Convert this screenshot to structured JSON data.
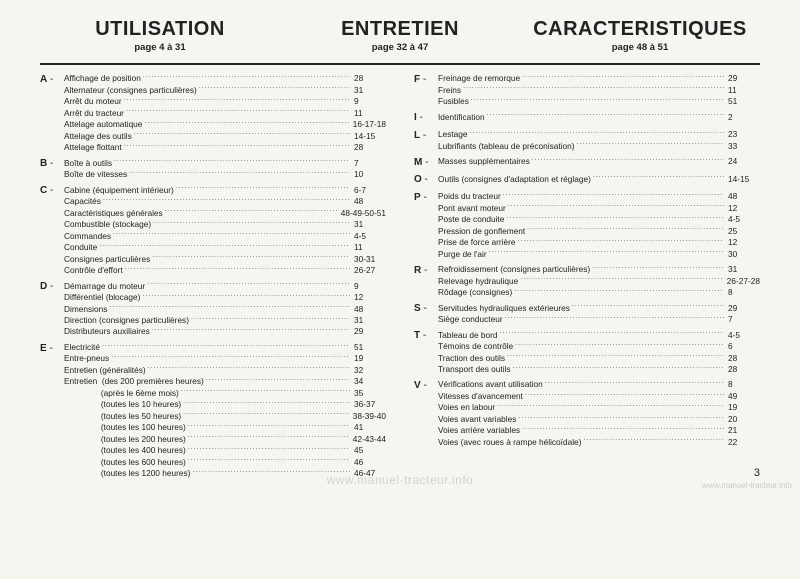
{
  "headers": [
    {
      "title": "UTILISATION",
      "sub": "page 4 à 31"
    },
    {
      "title": "ENTRETIEN",
      "sub": "page 32 à 47"
    },
    {
      "title": "CARACTERISTIQUES",
      "sub": "page 48 à 51"
    }
  ],
  "page_number": "3",
  "watermark": "www.manuel-tracteur.info",
  "colors": {
    "bg": "#f7f5f0",
    "text": "#222",
    "rule": "#222"
  },
  "typography": {
    "title_fontsize": 20,
    "title_weight": 900,
    "entry_fontsize": 8.3
  },
  "columns": [
    [
      {
        "letter": "A",
        "entries": [
          [
            "Affichage de position",
            "28"
          ],
          [
            "Alternateur (consignes particulières)",
            "31"
          ],
          [
            "Arrêt du moteur",
            "9"
          ],
          [
            "Arrêt du tracteur",
            "11"
          ],
          [
            "Attelage automatique",
            "16-17-18"
          ],
          [
            "Attelage des outils",
            "14-15"
          ],
          [
            "Attelage flottant",
            "28"
          ]
        ]
      },
      {
        "letter": "B",
        "entries": [
          [
            "Boîte à outils",
            "7"
          ],
          [
            "Boîte de vitesses",
            "10"
          ]
        ]
      },
      {
        "letter": "C",
        "entries": [
          [
            "Cabine (équipement intérieur)",
            "6-7"
          ],
          [
            "Capacités",
            "48"
          ],
          [
            "Caractéristiques générales",
            "48-49-50-51"
          ],
          [
            "Combustible (stockage)",
            "31"
          ],
          [
            "Commandes",
            "4-5"
          ],
          [
            "Conduite",
            "11"
          ],
          [
            "Consignes particulières",
            "30-31"
          ],
          [
            "Contrôle d'effort",
            "26-27"
          ]
        ]
      },
      {
        "letter": "D",
        "entries": [
          [
            "Démarrage du moteur",
            "9"
          ],
          [
            "Différentiel (blocage)",
            "12"
          ],
          [
            "Dimensions",
            "48"
          ],
          [
            "Direction (consignes particulières)",
            "31"
          ],
          [
            "Distributeurs auxiliaires",
            "29"
          ]
        ]
      },
      {
        "letter": "E",
        "entries": [
          [
            "Electricité",
            "51"
          ],
          [
            "Entre-pneus",
            "19"
          ],
          [
            "Entretien (généralités)",
            "32"
          ],
          [
            "Entretien  (des 200 premières heures)",
            "34"
          ],
          [
            "                (après le 6ème mois)",
            "35"
          ],
          [
            "                (toutes les 10 heures)",
            "36-37"
          ],
          [
            "                (toutes les 50 heures)",
            "38-39-40"
          ],
          [
            "                (toutes les 100 heures)",
            "41"
          ],
          [
            "                (toutes les 200 heures)",
            "42-43-44"
          ],
          [
            "                (toutes les 400 heures)",
            "45"
          ],
          [
            "                (toutes les 600 heures)",
            "46"
          ],
          [
            "                (toutes les 1200 heures)",
            "46-47"
          ]
        ]
      }
    ],
    [
      {
        "letter": "F",
        "entries": [
          [
            "Freinage de remorque",
            "29"
          ],
          [
            "Freins",
            "11"
          ],
          [
            "Fusibles",
            "51"
          ]
        ]
      },
      {
        "letter": "I",
        "entries": [
          [
            "Identification",
            "2"
          ]
        ]
      },
      {
        "letter": "L",
        "entries": [
          [
            "Lestage",
            "23"
          ],
          [
            "Lubrifiants (tableau de préconisation)",
            "33"
          ]
        ]
      },
      {
        "letter": "M",
        "entries": [
          [
            "Masses supplémentaires",
            "24"
          ]
        ]
      },
      {
        "letter": "O",
        "entries": [
          [
            "Outils (consignes d'adaptation et réglage)",
            "14-15"
          ]
        ]
      },
      {
        "letter": "P",
        "entries": [
          [
            "Poids du tracteur",
            "48"
          ],
          [
            "Pont avant moteur",
            "12"
          ],
          [
            "Poste de conduite",
            "4-5"
          ],
          [
            "Pression de gonflement",
            "25"
          ],
          [
            "Prise de force arrière",
            "12"
          ],
          [
            "Purge de l'air",
            "30"
          ]
        ]
      },
      {
        "letter": "R",
        "entries": [
          [
            "Refroidissement (consignes particulières)",
            "31"
          ],
          [
            "Relevage hydraulique",
            "26-27-28"
          ],
          [
            "Rôdage (consignes)",
            "8"
          ]
        ]
      },
      {
        "letter": "S",
        "entries": [
          [
            "Servitudes hydrauliques extérieures",
            "29"
          ],
          [
            "Siège conducteur",
            "7"
          ]
        ]
      },
      {
        "letter": "T",
        "entries": [
          [
            "Tableau de bord",
            "4-5"
          ],
          [
            "Témoins de contrôle",
            "6"
          ],
          [
            "Traction des outils",
            "28"
          ],
          [
            "Transport des outils",
            "28"
          ]
        ]
      },
      {
        "letter": "V",
        "entries": [
          [
            "Vérifications avant utilisation",
            "8"
          ],
          [
            "Vitesses d'avancement",
            "49"
          ],
          [
            "Voies en labour",
            "19"
          ],
          [
            "Voies avant variables",
            "20"
          ],
          [
            "Voies arrière variables",
            "21"
          ],
          [
            "Voies (avec roues à rampe hélicoïdale)",
            "22"
          ]
        ]
      }
    ]
  ]
}
